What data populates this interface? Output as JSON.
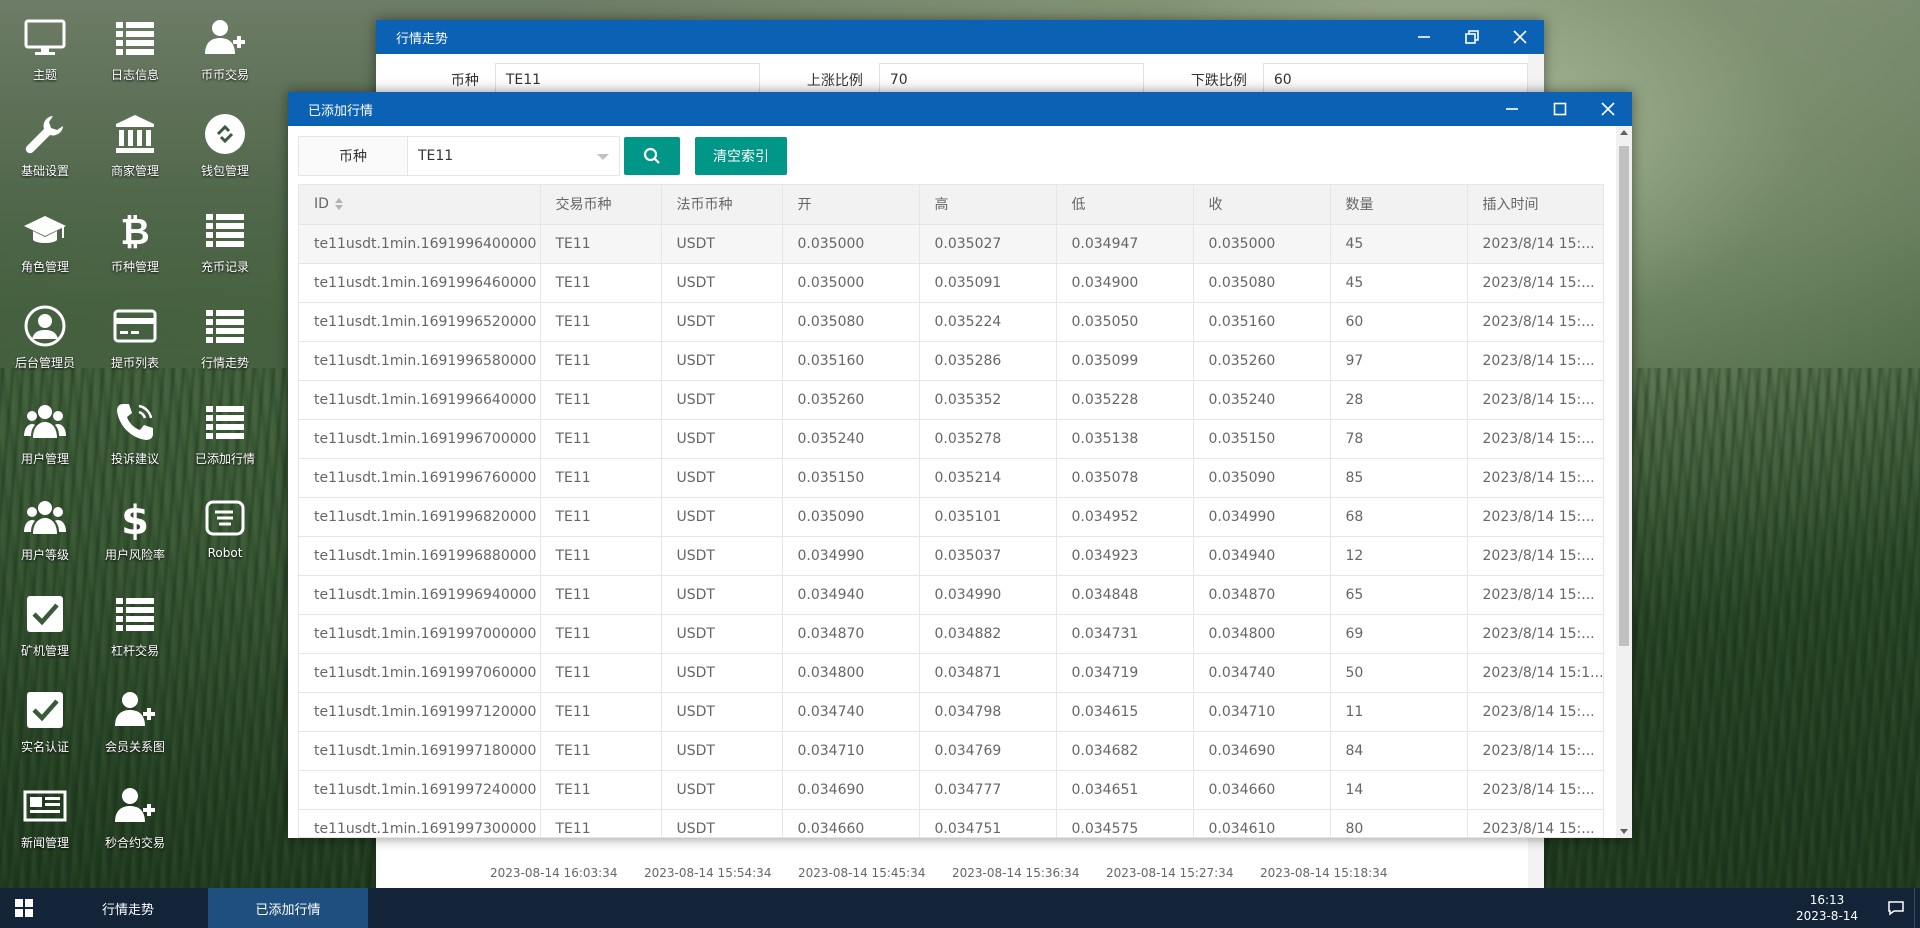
{
  "desktop": {
    "icons": [
      {
        "label": "主题",
        "icon": "monitor-icon"
      },
      {
        "label": "日志信息",
        "icon": "list-icon"
      },
      {
        "label": "币币交易",
        "icon": "user-plus-icon"
      },
      {
        "label": "基础设置",
        "icon": "wrench-icon"
      },
      {
        "label": "商家管理",
        "icon": "bank-icon"
      },
      {
        "label": "钱包管理",
        "icon": "wallet-icon"
      },
      {
        "label": "角色管理",
        "icon": "graduation-cap-icon"
      },
      {
        "label": "币种管理",
        "icon": "bitcoin-icon"
      },
      {
        "label": "充币记录",
        "icon": "list-icon"
      },
      {
        "label": "后台管理员",
        "icon": "user-circle-icon"
      },
      {
        "label": "提币列表",
        "icon": "credit-card-icon"
      },
      {
        "label": "行情走势",
        "icon": "list-icon"
      },
      {
        "label": "用户管理",
        "icon": "users-icon"
      },
      {
        "label": "投诉建议",
        "icon": "phone-icon"
      },
      {
        "label": "已添加行情",
        "icon": "list-icon"
      },
      {
        "label": "用户等级",
        "icon": "users-icon"
      },
      {
        "label": "用户风险率",
        "icon": "dollar-icon"
      },
      {
        "label": "Robot",
        "icon": "hand-icon"
      },
      {
        "label": "矿机管理",
        "icon": "checkbox-icon"
      },
      {
        "label": "杠杆交易",
        "icon": "list-icon"
      },
      {
        "label": "",
        "icon": ""
      },
      {
        "label": "实名认证",
        "icon": "checkbox-icon"
      },
      {
        "label": "会员关系图",
        "icon": "user-plus-icon"
      },
      {
        "label": "",
        "icon": ""
      },
      {
        "label": "新闻管理",
        "icon": "newspaper-icon"
      },
      {
        "label": "秒合约交易",
        "icon": "user-plus-icon"
      }
    ]
  },
  "quotes_window": {
    "title": "行情走势",
    "filters": {
      "currency_label": "币种",
      "currency_value": "TE11",
      "rise_label": "上涨比例",
      "rise_value": "70",
      "fall_label": "下跌比例",
      "fall_value": "60"
    },
    "axis_dates": [
      "2023-08-14 16:03:34",
      "2023-08-14 15:54:34",
      "2023-08-14 15:45:34",
      "2023-08-14 15:36:34",
      "2023-08-14 15:27:34",
      "2023-08-14 15:18:34"
    ]
  },
  "added_window": {
    "title": "已添加行情",
    "search": {
      "label": "币种",
      "selected": "TE11",
      "clear_label": "清空索引"
    },
    "columns": [
      "ID",
      "交易币种",
      "法币币种",
      "开",
      "高",
      "低",
      "收",
      "数量",
      "插入时间"
    ],
    "rows": [
      [
        "te11usdt.1min.1691996400000",
        "TE11",
        "USDT",
        "0.035000",
        "0.035027",
        "0.034947",
        "0.035000",
        "45",
        "2023/8/14 15:..."
      ],
      [
        "te11usdt.1min.1691996460000",
        "TE11",
        "USDT",
        "0.035000",
        "0.035091",
        "0.034900",
        "0.035080",
        "45",
        "2023/8/14 15:..."
      ],
      [
        "te11usdt.1min.1691996520000",
        "TE11",
        "USDT",
        "0.035080",
        "0.035224",
        "0.035050",
        "0.035160",
        "60",
        "2023/8/14 15:..."
      ],
      [
        "te11usdt.1min.1691996580000",
        "TE11",
        "USDT",
        "0.035160",
        "0.035286",
        "0.035099",
        "0.035260",
        "97",
        "2023/8/14 15:..."
      ],
      [
        "te11usdt.1min.1691996640000",
        "TE11",
        "USDT",
        "0.035260",
        "0.035352",
        "0.035228",
        "0.035240",
        "28",
        "2023/8/14 15:..."
      ],
      [
        "te11usdt.1min.1691996700000",
        "TE11",
        "USDT",
        "0.035240",
        "0.035278",
        "0.035138",
        "0.035150",
        "78",
        "2023/8/14 15:..."
      ],
      [
        "te11usdt.1min.1691996760000",
        "TE11",
        "USDT",
        "0.035150",
        "0.035214",
        "0.035078",
        "0.035090",
        "85",
        "2023/8/14 15:..."
      ],
      [
        "te11usdt.1min.1691996820000",
        "TE11",
        "USDT",
        "0.035090",
        "0.035101",
        "0.034952",
        "0.034990",
        "68",
        "2023/8/14 15:..."
      ],
      [
        "te11usdt.1min.1691996880000",
        "TE11",
        "USDT",
        "0.034990",
        "0.035037",
        "0.034923",
        "0.034940",
        "12",
        "2023/8/14 15:..."
      ],
      [
        "te11usdt.1min.1691996940000",
        "TE11",
        "USDT",
        "0.034940",
        "0.034990",
        "0.034848",
        "0.034870",
        "65",
        "2023/8/14 15:..."
      ],
      [
        "te11usdt.1min.1691997000000",
        "TE11",
        "USDT",
        "0.034870",
        "0.034882",
        "0.034731",
        "0.034800",
        "69",
        "2023/8/14 15:..."
      ],
      [
        "te11usdt.1min.1691997060000",
        "TE11",
        "USDT",
        "0.034800",
        "0.034871",
        "0.034719",
        "0.034740",
        "50",
        "2023/8/14 15:1..."
      ],
      [
        "te11usdt.1min.1691997120000",
        "TE11",
        "USDT",
        "0.034740",
        "0.034798",
        "0.034615",
        "0.034710",
        "11",
        "2023/8/14 15:..."
      ],
      [
        "te11usdt.1min.1691997180000",
        "TE11",
        "USDT",
        "0.034710",
        "0.034769",
        "0.034682",
        "0.034690",
        "84",
        "2023/8/14 15:..."
      ],
      [
        "te11usdt.1min.1691997240000",
        "TE11",
        "USDT",
        "0.034690",
        "0.034777",
        "0.034651",
        "0.034660",
        "14",
        "2023/8/14 15:..."
      ],
      [
        "te11usdt.1min.1691997300000",
        "TE11",
        "USDT",
        "0.034660",
        "0.034751",
        "0.034575",
        "0.034610",
        "80",
        "2023/8/14 15:..."
      ]
    ]
  },
  "taskbar": {
    "tasks": [
      "行情走势",
      "已添加行情"
    ],
    "time": "16:13",
    "date": "2023-8-14"
  },
  "colors": {
    "titlebar": "#0b61b3",
    "accent": "#009688",
    "taskbar": "#132338",
    "task_active": "#1e4f7e"
  }
}
